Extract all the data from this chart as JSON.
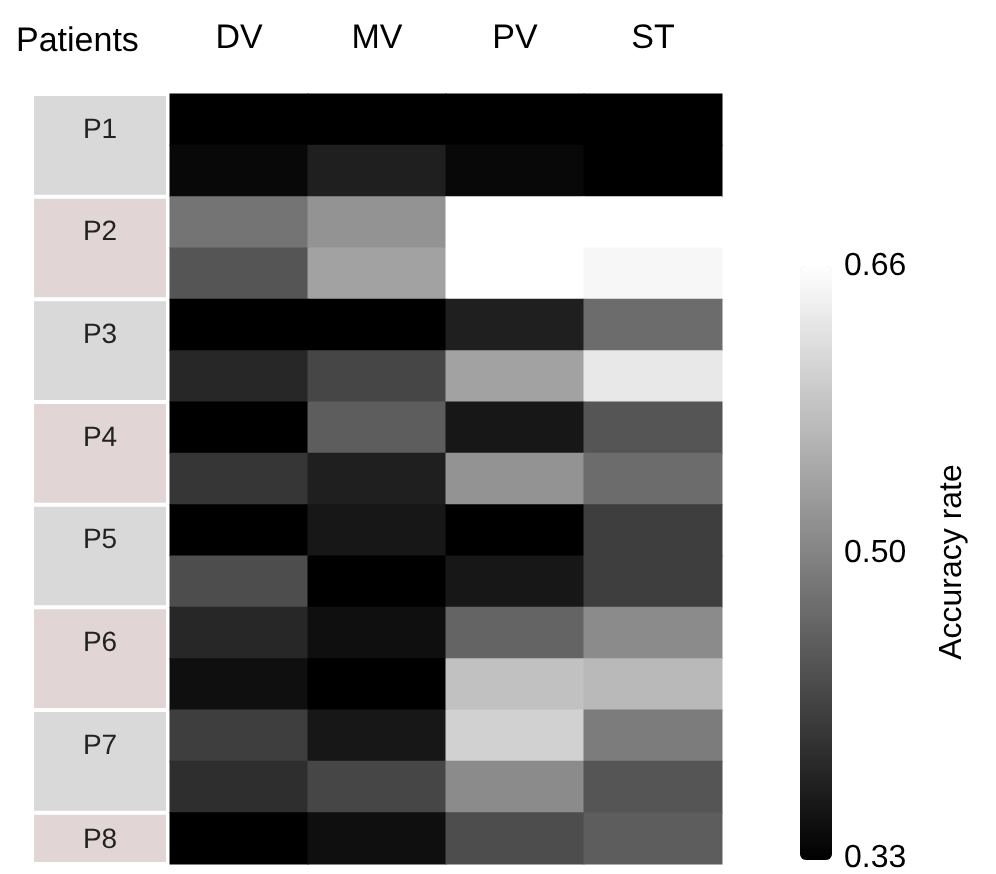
{
  "chart_data": {
    "type": "heatmap",
    "ylabel": "Patients",
    "clabel": "Accuracy rate",
    "categories": [
      "DV",
      "MV",
      "PV",
      "ST"
    ],
    "y_categories": [
      "P1",
      null,
      "P2",
      null,
      "P3",
      null,
      "P4",
      null,
      "P5",
      null,
      "P6",
      null,
      "P7",
      null,
      "P8"
    ],
    "cells": [
      [
        0.33,
        0.33,
        0.33,
        0.33
      ],
      [
        0.34,
        0.37,
        0.34,
        0.33
      ],
      [
        0.48,
        0.52,
        0.66,
        0.66
      ],
      [
        0.44,
        0.54,
        0.66,
        0.65
      ],
      [
        0.33,
        0.33,
        0.37,
        0.47
      ],
      [
        0.38,
        0.42,
        0.54,
        0.63
      ],
      [
        0.33,
        0.45,
        0.36,
        0.44
      ],
      [
        0.4,
        0.37,
        0.52,
        0.47
      ],
      [
        0.33,
        0.36,
        0.33,
        0.41
      ],
      [
        0.43,
        0.33,
        0.36,
        0.41
      ],
      [
        0.38,
        0.35,
        0.46,
        0.51
      ],
      [
        0.35,
        0.33,
        0.58,
        0.57
      ],
      [
        0.41,
        0.36,
        0.6,
        0.49
      ],
      [
        0.39,
        0.42,
        0.51,
        0.44
      ],
      [
        0.33,
        0.35,
        0.43,
        0.45
      ]
    ],
    "clim": [
      0.33,
      0.66
    ],
    "cticks": [
      0.33,
      {
        "value": 0.5,
        "label": "0.50"
      },
      0.66
    ]
  }
}
